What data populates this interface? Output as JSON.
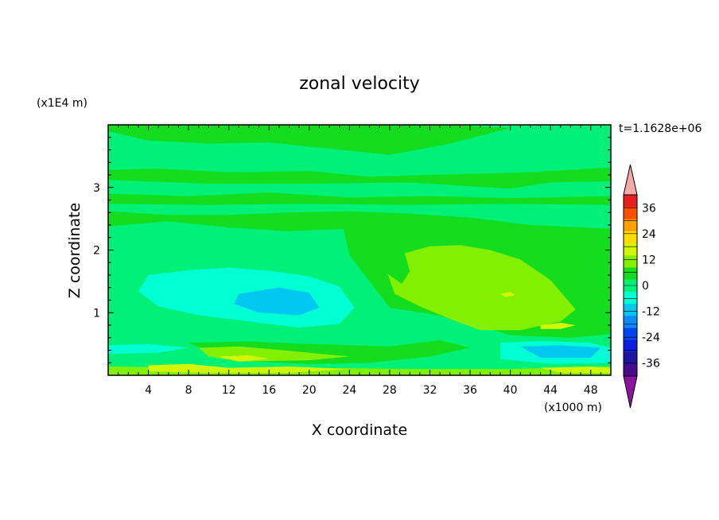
{
  "chart_data": {
    "type": "heatmap",
    "title": "zonal velocity",
    "xlabel": "X coordinate",
    "ylabel": "Z coordinate",
    "x_unit": "(x1000 m)",
    "y_unit": "(x1E4 m)",
    "time_label": "t=1.1628e+06",
    "xlim": [
      0,
      50
    ],
    "ylim": [
      0,
      4
    ],
    "x_ticks": [
      4,
      8,
      12,
      16,
      20,
      24,
      28,
      32,
      36,
      40,
      44,
      48
    ],
    "y_ticks": [
      1,
      2,
      3
    ],
    "colorbar": {
      "labels": [
        "36",
        "24",
        "12",
        "0",
        "-12",
        "-24",
        "-36"
      ],
      "label_values": [
        36,
        24,
        12,
        0,
        -12,
        -24,
        -36
      ],
      "range": [
        -42,
        42
      ],
      "levels": [
        -42,
        -36,
        -30,
        -24,
        -18,
        -12,
        -6,
        0,
        6,
        12,
        18,
        24,
        30,
        36,
        42
      ],
      "colors": [
        "#4b0a8c",
        "#1e14a0",
        "#0a1edc",
        "#0046f0",
        "#0a8cff",
        "#00c8f0",
        "#00ffd2",
        "#00f078",
        "#14dc1e",
        "#82f000",
        "#d2f500",
        "#ffdc00",
        "#ffa000",
        "#ff5000",
        "#e61e1e"
      ],
      "over_color": "#f5aaaa",
      "under_color": "#8c14a0"
    },
    "background_color": "#00f078",
    "regions": [
      {
        "level": "0 to 6",
        "color": "#14dc1e",
        "points": [
          [
            0,
            3.9
          ],
          [
            4,
            3.75
          ],
          [
            10,
            3.7
          ],
          [
            16,
            3.72
          ],
          [
            22,
            3.62
          ],
          [
            28,
            3.52
          ],
          [
            34,
            3.7
          ],
          [
            40,
            3.95
          ],
          [
            34,
            4
          ],
          [
            0,
            4
          ]
        ]
      },
      {
        "level": "0 to 6",
        "color": "#14dc1e",
        "points": [
          [
            0,
            3.28
          ],
          [
            5,
            3.3
          ],
          [
            12,
            3.24
          ],
          [
            20,
            3.26
          ],
          [
            26,
            3.17
          ],
          [
            32,
            3.2
          ],
          [
            42,
            3.24
          ],
          [
            50,
            3.32
          ],
          [
            50,
            3.1
          ],
          [
            44,
            3.08
          ],
          [
            40,
            2.98
          ],
          [
            36,
            3.02
          ],
          [
            30,
            3.08
          ],
          [
            20,
            3.06
          ],
          [
            10,
            3.06
          ],
          [
            0,
            3.12
          ]
        ]
      },
      {
        "level": "0 to 6",
        "color": "#14dc1e",
        "points": [
          [
            0,
            2.9
          ],
          [
            8,
            2.86
          ],
          [
            16,
            2.92
          ],
          [
            24,
            2.84
          ],
          [
            32,
            2.86
          ],
          [
            40,
            2.83
          ],
          [
            50,
            2.86
          ],
          [
            50,
            2.72
          ],
          [
            40,
            2.74
          ],
          [
            30,
            2.72
          ],
          [
            20,
            2.74
          ],
          [
            10,
            2.72
          ],
          [
            0,
            2.74
          ]
        ]
      },
      {
        "level": "0 to 6",
        "color": "#14dc1e",
        "points": [
          [
            0,
            2.62
          ],
          [
            6,
            2.56
          ],
          [
            12,
            2.56
          ],
          [
            18,
            2.6
          ],
          [
            24,
            2.62
          ],
          [
            30,
            2.58
          ],
          [
            36,
            2.52
          ],
          [
            42,
            2.4
          ],
          [
            50,
            2.34
          ],
          [
            50,
            0.66
          ],
          [
            46,
            0.6
          ],
          [
            40,
            0.64
          ],
          [
            36,
            0.84
          ],
          [
            32,
            0.98
          ],
          [
            28,
            1.08
          ],
          [
            26,
            1.5
          ],
          [
            24,
            1.92
          ],
          [
            23.4,
            2.34
          ],
          [
            18,
            2.3
          ],
          [
            12,
            2.36
          ],
          [
            6,
            2.46
          ],
          [
            0,
            2.38
          ]
        ]
      },
      {
        "level": "6 to 12",
        "color": "#82f000",
        "points": [
          [
            29.5,
            1.95
          ],
          [
            32,
            2.06
          ],
          [
            35,
            2.08
          ],
          [
            38,
            2.0
          ],
          [
            41,
            1.85
          ],
          [
            44,
            1.52
          ],
          [
            46.5,
            1.05
          ],
          [
            45,
            0.86
          ],
          [
            41,
            0.72
          ],
          [
            37,
            0.72
          ],
          [
            34,
            0.9
          ],
          [
            31,
            1.1
          ],
          [
            28.5,
            1.3
          ],
          [
            27.8,
            1.62
          ],
          [
            29.2,
            1.46
          ],
          [
            30,
            1.66
          ]
        ]
      },
      {
        "level": "12 to 18",
        "color": "#d2f500",
        "points": [
          [
            43,
            0.8
          ],
          [
            45,
            0.84
          ],
          [
            46.5,
            0.8
          ],
          [
            45,
            0.74
          ],
          [
            43,
            0.74
          ]
        ]
      },
      {
        "level": "12 to 18",
        "color": "#d2f500",
        "points": [
          [
            39,
            1.3
          ],
          [
            40,
            1.33
          ],
          [
            40.5,
            1.28
          ],
          [
            39.5,
            1.25
          ]
        ]
      },
      {
        "level": "-6 to 0",
        "color": "#00f078",
        "points": [
          [
            2,
            1.82
          ],
          [
            6,
            1.92
          ],
          [
            10,
            2.02
          ],
          [
            14,
            2.06
          ],
          [
            18,
            2.02
          ],
          [
            22,
            1.96
          ],
          [
            25,
            1.7
          ],
          [
            26,
            1.32
          ],
          [
            26.5,
            0.92
          ],
          [
            24,
            0.7
          ],
          [
            20,
            0.64
          ],
          [
            14,
            0.66
          ],
          [
            8,
            0.74
          ],
          [
            3,
            0.86
          ],
          [
            1,
            1.22
          ]
        ]
      },
      {
        "level": "-12 to -6",
        "color": "#00ffd2",
        "points": [
          [
            4,
            1.6
          ],
          [
            8,
            1.68
          ],
          [
            12,
            1.72
          ],
          [
            16,
            1.67
          ],
          [
            20,
            1.58
          ],
          [
            23,
            1.42
          ],
          [
            24.5,
            1.08
          ],
          [
            23,
            0.82
          ],
          [
            19,
            0.76
          ],
          [
            14,
            0.86
          ],
          [
            9,
            0.96
          ],
          [
            5,
            1.1
          ],
          [
            3,
            1.34
          ]
        ]
      },
      {
        "level": "-18 to -12",
        "color": "#00c8f0",
        "points": [
          [
            13,
            1.3
          ],
          [
            17,
            1.4
          ],
          [
            20,
            1.32
          ],
          [
            21,
            1.08
          ],
          [
            19,
            0.96
          ],
          [
            15,
            1.0
          ],
          [
            12.5,
            1.14
          ]
        ]
      },
      {
        "level": "-6 to 0",
        "color": "#00f078",
        "points": [
          [
            0,
            0.82
          ],
          [
            6,
            0.86
          ],
          [
            14,
            0.8
          ],
          [
            22,
            0.72
          ],
          [
            30,
            0.7
          ],
          [
            38,
            0.68
          ],
          [
            44,
            0.56
          ],
          [
            50,
            0.52
          ],
          [
            50,
            0.1
          ],
          [
            40,
            0.1
          ],
          [
            30,
            0.12
          ],
          [
            20,
            0.1
          ],
          [
            10,
            0.1
          ],
          [
            0,
            0.14
          ]
        ]
      },
      {
        "level": "-12 to -6",
        "color": "#00ffd2",
        "points": [
          [
            0,
            0.48
          ],
          [
            4,
            0.5
          ],
          [
            8,
            0.44
          ],
          [
            5,
            0.36
          ],
          [
            0,
            0.34
          ]
        ]
      },
      {
        "level": "-12 to -6",
        "color": "#00ffd2",
        "points": [
          [
            39,
            0.52
          ],
          [
            43,
            0.55
          ],
          [
            48,
            0.52
          ],
          [
            50,
            0.44
          ],
          [
            50,
            0.2
          ],
          [
            44,
            0.18
          ],
          [
            39,
            0.26
          ]
        ]
      },
      {
        "level": "-18 to -12",
        "color": "#00c8f0",
        "points": [
          [
            41,
            0.46
          ],
          [
            45,
            0.48
          ],
          [
            49,
            0.44
          ],
          [
            48,
            0.28
          ],
          [
            43,
            0.28
          ]
        ]
      },
      {
        "level": "0 to 6",
        "color": "#14dc1e",
        "points": [
          [
            8,
            0.52
          ],
          [
            14,
            0.54
          ],
          [
            20,
            0.5
          ],
          [
            28,
            0.46
          ],
          [
            33,
            0.56
          ],
          [
            36,
            0.44
          ],
          [
            32,
            0.3
          ],
          [
            26,
            0.2
          ],
          [
            20,
            0.18
          ],
          [
            12,
            0.24
          ]
        ]
      },
      {
        "level": "6 to 12",
        "color": "#82f000",
        "points": [
          [
            9,
            0.44
          ],
          [
            13,
            0.46
          ],
          [
            16,
            0.42
          ],
          [
            20,
            0.36
          ],
          [
            24,
            0.3
          ],
          [
            20,
            0.24
          ],
          [
            13,
            0.22
          ],
          [
            10,
            0.3
          ]
        ]
      },
      {
        "level": "6 to 12",
        "color": "#82f000",
        "points": [
          [
            0,
            0.14
          ],
          [
            10,
            0.12
          ],
          [
            20,
            0.12
          ],
          [
            30,
            0.1
          ],
          [
            40,
            0.1
          ],
          [
            50,
            0.14
          ],
          [
            50,
            0
          ],
          [
            0,
            0
          ]
        ]
      },
      {
        "level": "12 to 18",
        "color": "#d2f500",
        "points": [
          [
            11,
            0.3
          ],
          [
            14,
            0.32
          ],
          [
            16,
            0.26
          ],
          [
            13,
            0.22
          ]
        ]
      },
      {
        "level": "12 to 18",
        "color": "#d2f500",
        "points": [
          [
            4,
            0.16
          ],
          [
            8,
            0.18
          ],
          [
            12,
            0.12
          ],
          [
            18,
            0.14
          ],
          [
            24,
            0.1
          ],
          [
            18,
            0.04
          ],
          [
            10,
            0.04
          ],
          [
            4,
            0.06
          ]
        ]
      },
      {
        "level": "12 to 18",
        "color": "#d2f500",
        "points": [
          [
            43,
            0.12
          ],
          [
            48,
            0.14
          ],
          [
            50,
            0.12
          ],
          [
            50,
            0.04
          ],
          [
            45,
            0.04
          ]
        ]
      }
    ]
  }
}
